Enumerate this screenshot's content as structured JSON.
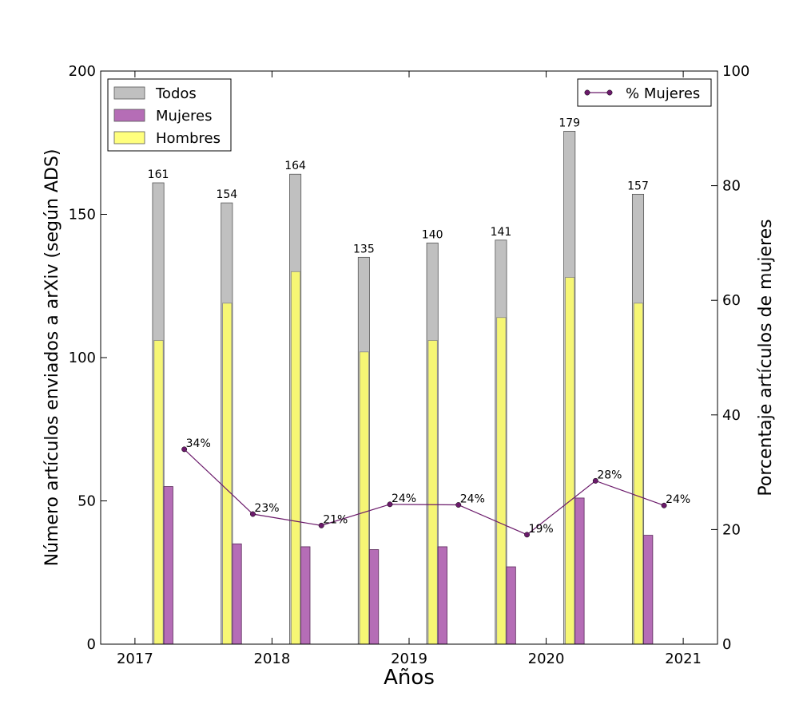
{
  "chart_data": {
    "type": "bar",
    "xlabel": "Años",
    "ylabel": "Número artículos enviados a arXiv (según ADS)",
    "y2label": "Porcentaje artículos de mujeres",
    "ylim": [
      0,
      200
    ],
    "y2lim": [
      0,
      100
    ],
    "xlim": [
      2016.75,
      2021.25
    ],
    "yticks": [
      0,
      50,
      100,
      150,
      200
    ],
    "y2ticks": [
      0,
      20,
      40,
      60,
      80,
      100
    ],
    "xticks": [
      2017,
      2018,
      2019,
      2020,
      2021
    ],
    "x_tick_labels": [
      "2017",
      "2018",
      "2019",
      "2020",
      "2021"
    ],
    "bar_width_years": 0.083,
    "series": [
      {
        "name": "Todos",
        "type": "bar",
        "color": "#c0c0c0",
        "x": [
          2017.17,
          2017.67,
          2018.17,
          2018.67,
          2019.17,
          2019.67,
          2020.17,
          2020.67
        ],
        "values": [
          161,
          154,
          164,
          135,
          140,
          141,
          179,
          157
        ],
        "labels": [
          "161",
          "154",
          "164",
          "135",
          "140",
          "141",
          "179",
          "157"
        ]
      },
      {
        "name": "Mujeres",
        "type": "bar",
        "color": "#a349a4",
        "x": [
          2017.17,
          2017.67,
          2018.17,
          2018.67,
          2019.17,
          2019.67,
          2020.17,
          2020.67
        ],
        "values": [
          55,
          35,
          34,
          33,
          34,
          27,
          51,
          38
        ]
      },
      {
        "name": "Hombres",
        "type": "bar",
        "color": "#ffff66",
        "x": [
          2017.17,
          2017.67,
          2018.17,
          2018.67,
          2019.17,
          2019.67,
          2020.17,
          2020.67
        ],
        "values": [
          106,
          119,
          130,
          102,
          106,
          114,
          128,
          119
        ]
      },
      {
        "name": "% Mujeres",
        "type": "line",
        "axis": "right",
        "color": "#6b1a6b",
        "x": [
          2017.36,
          2017.86,
          2018.36,
          2018.86,
          2019.36,
          2019.86,
          2020.36,
          2020.86
        ],
        "values": [
          34,
          22.7,
          20.7,
          24.4,
          24.3,
          19.1,
          28.5,
          24.2
        ],
        "labels": [
          "34%",
          "23%",
          "21%",
          "24%",
          "24%",
          "19%",
          "28%",
          "24%"
        ]
      }
    ],
    "legend_left": {
      "placement": "upper-left",
      "entries": [
        "Todos",
        "Mujeres",
        "Hombres"
      ]
    },
    "legend_right": {
      "placement": "upper-right",
      "entries": [
        "% Mujeres"
      ]
    }
  }
}
